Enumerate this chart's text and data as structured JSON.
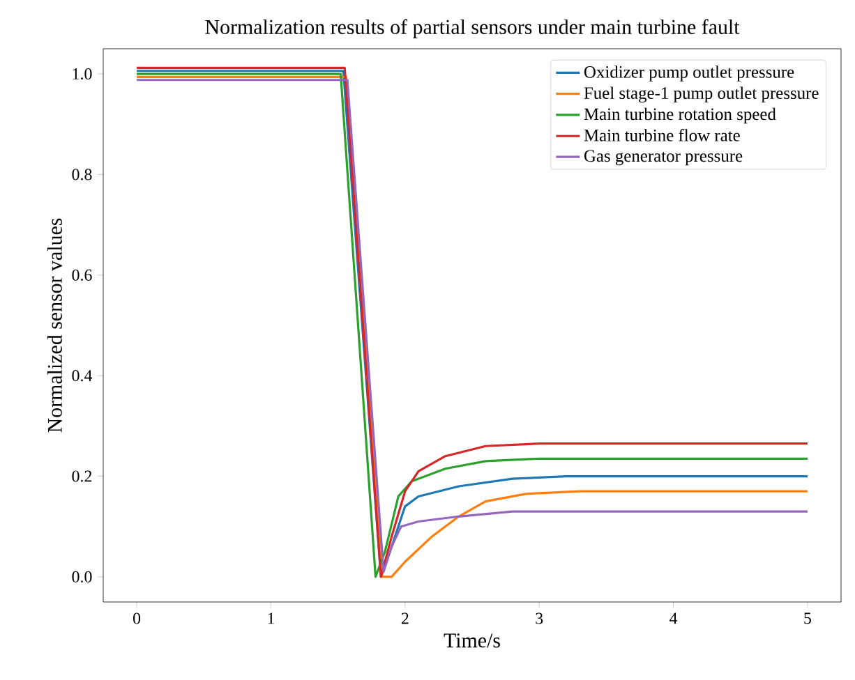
{
  "chart_data": {
    "type": "line",
    "title": "Normalization results of partial sensors under main turbine fault",
    "xlabel": "Time/s",
    "ylabel": "Normalized sensor values",
    "xlim": [
      -0.25,
      5.25
    ],
    "ylim": [
      -0.05,
      1.05
    ],
    "xticks": [
      0,
      1,
      2,
      3,
      4,
      5
    ],
    "yticks": [
      {
        "value": 0,
        "label": "0.0"
      },
      {
        "value": 0.2,
        "label": "0.2"
      },
      {
        "value": 0.4,
        "label": "0.4"
      },
      {
        "value": 0.6,
        "label": "0.6"
      },
      {
        "value": 0.8,
        "label": "0.8"
      },
      {
        "value": 1,
        "label": "1.0"
      }
    ],
    "grid": false,
    "legend": "top right",
    "marker": "none",
    "line_style": "solid",
    "series": [
      {
        "name": "Oxidizer pump outlet pressure",
        "color": "#1f77b4",
        "x": [
          0,
          1.54,
          1.82,
          1.9,
          2.0,
          2.1,
          2.4,
          2.8,
          3.2,
          5
        ],
        "values": [
          1.006,
          1.006,
          0.0,
          0.06,
          0.14,
          0.16,
          0.18,
          0.195,
          0.2,
          0.2
        ]
      },
      {
        "name": "Fuel stage-1 pump outlet pressure",
        "color": "#ff7f0e",
        "x": [
          0,
          1.56,
          1.83,
          1.9,
          2.0,
          2.2,
          2.4,
          2.6,
          2.9,
          3.3,
          5
        ],
        "values": [
          0.994,
          0.994,
          0.0,
          0.0,
          0.03,
          0.08,
          0.12,
          0.15,
          0.165,
          0.17,
          0.17
        ]
      },
      {
        "name": "Main turbine rotation speed",
        "color": "#2ca02c",
        "x": [
          0,
          1.52,
          1.78,
          1.85,
          1.95,
          2.05,
          2.3,
          2.6,
          3.0,
          5
        ],
        "values": [
          1.0,
          1.0,
          0.0,
          0.05,
          0.16,
          0.19,
          0.215,
          0.23,
          0.235,
          0.235
        ]
      },
      {
        "name": "Main turbine flow rate",
        "color": "#d62728",
        "x": [
          0,
          1.55,
          1.82,
          1.9,
          2.0,
          2.1,
          2.3,
          2.6,
          3.0,
          4.0,
          5
        ],
        "values": [
          1.012,
          1.012,
          0.0,
          0.08,
          0.17,
          0.21,
          0.24,
          0.26,
          0.265,
          0.265,
          0.265
        ]
      },
      {
        "name": "Gas generator pressure",
        "color": "#9467bd",
        "x": [
          0,
          1.57,
          1.84,
          1.9,
          1.97,
          2.1,
          2.4,
          2.8,
          5
        ],
        "values": [
          0.988,
          0.988,
          0.01,
          0.06,
          0.1,
          0.11,
          0.12,
          0.13,
          0.13
        ]
      }
    ]
  }
}
